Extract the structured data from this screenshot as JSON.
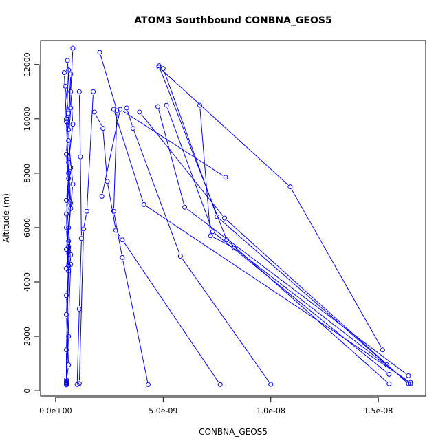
{
  "chart_data": {
    "type": "scatter",
    "title": "ATOM3 Southbound CONBNA_GEOS5",
    "xlabel": "CONBNA_GEOS5",
    "ylabel": "Altitude (m)",
    "xlim": [
      -7e-10,
      1.72e-08
    ],
    "ylim": [
      -200,
      12880
    ],
    "x_ticks": [
      0,
      5e-09,
      1e-08,
      1.5e-08
    ],
    "x_tick_labels": [
      "0.0e+00",
      "5.0e-09",
      "1.0e-08",
      "1.5e-08"
    ],
    "y_ticks": [
      0,
      2000,
      4000,
      6000,
      8000,
      10000,
      12000
    ],
    "y_tick_labels": [
      "0",
      "2000",
      "4000",
      "6000",
      "8000",
      "10000",
      "12000"
    ],
    "series_color": "#0000ff",
    "marker": "open-circle",
    "connect_points": true,
    "grid": false,
    "series": [
      {
        "x": [
          6e-10,
          5e-10,
          6e-10,
          5e-10,
          6e-10,
          5e-10,
          6e-10,
          5e-10,
          5e-10
        ],
        "y": [
          11800,
          10000,
          8000,
          6000,
          4600,
          2800,
          950,
          350,
          230
        ]
      },
      {
        "x": [
          4e-10,
          5e-10,
          6e-10,
          5e-10,
          7e-10,
          5e-10,
          6e-10,
          5e-10,
          5e-10
        ],
        "y": [
          11700,
          9900,
          7800,
          7000,
          5000,
          3500,
          2000,
          400,
          210
        ]
      },
      {
        "x": [
          4.5e-10,
          6e-10,
          5e-10,
          7e-10,
          5e-10,
          6e-10,
          5e-10,
          5e-10
        ],
        "y": [
          11200,
          10200,
          8700,
          6700,
          5200,
          4400,
          1500,
          250
        ]
      },
      {
        "x": [
          8e-10,
          7e-10,
          8e-10,
          6e-10,
          7e-10,
          6e-10,
          5e-10
        ],
        "y": [
          12600,
          11000,
          9800,
          8400,
          6900,
          5500,
          300
        ]
      },
      {
        "x": [
          5.5e-10,
          7e-10,
          6e-10,
          8e-10,
          6e-10,
          7e-10,
          5e-10
        ],
        "y": [
          12150,
          10400,
          9200,
          7600,
          6000,
          4650,
          280
        ]
      },
      {
        "x": [
          7e-10,
          6e-10,
          7e-10,
          5e-10,
          6e-10,
          5e-10
        ],
        "y": [
          11650,
          9600,
          8200,
          6500,
          5300,
          4500
        ]
      },
      {
        "x": [
          1.1e-09,
          1.15e-09,
          1.2e-09,
          1.1e-09,
          1e-09
        ],
        "y": [
          11000,
          8600,
          5600,
          3000,
          220
        ]
      },
      {
        "x": [
          1.75e-09,
          1.45e-09,
          1.3e-09,
          1.1e-09
        ],
        "y": [
          11000,
          6600,
          5950,
          260
        ]
      },
      {
        "x": [
          2.05e-09,
          2.85e-09,
          2.7e-09,
          3.1e-09,
          4.3e-09
        ],
        "y": [
          12450,
          10300,
          6600,
          4900,
          220
        ]
      },
      {
        "x": [
          1.8e-09,
          2.2e-09,
          2.4e-09,
          2.8e-09,
          3.1e-09,
          7.65e-09
        ],
        "y": [
          10250,
          9650,
          7700,
          5900,
          5550,
          220
        ]
      },
      {
        "x": [
          2.15e-09,
          3e-09,
          7.9e-09
        ],
        "y": [
          7150,
          10350,
          7850
        ]
      },
      {
        "x": [
          3.3e-09,
          3.6e-09,
          5.8e-09,
          1e-08
        ],
        "y": [
          10400,
          9650,
          4950,
          230
        ]
      },
      {
        "x": [
          2.7e-09,
          4.1e-09,
          1.65e-08
        ],
        "y": [
          10350,
          6850,
          300
        ]
      },
      {
        "x": [
          3.9e-09,
          7.85e-09,
          1.64e-08
        ],
        "y": [
          10250,
          6350,
          250
        ]
      },
      {
        "x": [
          4.8e-09,
          1.09e-08,
          1.52e-08
        ],
        "y": [
          11900,
          7500,
          1500
        ]
      },
      {
        "x": [
          4.8e-09,
          7.95e-09,
          1.55e-08
        ],
        "y": [
          11950,
          5550,
          250
        ]
      },
      {
        "x": [
          5e-09,
          7.5e-09,
          1.54e-08
        ],
        "y": [
          11850,
          6400,
          950
        ]
      },
      {
        "x": [
          5.15e-09,
          7.3e-09,
          1.55e-08
        ],
        "y": [
          10500,
          5850,
          600
        ]
      },
      {
        "x": [
          4.75e-09,
          6e-09,
          1.64e-08
        ],
        "y": [
          10450,
          6750,
          550
        ]
      },
      {
        "x": [
          6.7e-09,
          7.2e-09,
          8.3e-09,
          1.65e-08
        ],
        "y": [
          10500,
          5700,
          5250,
          250
        ]
      }
    ]
  }
}
